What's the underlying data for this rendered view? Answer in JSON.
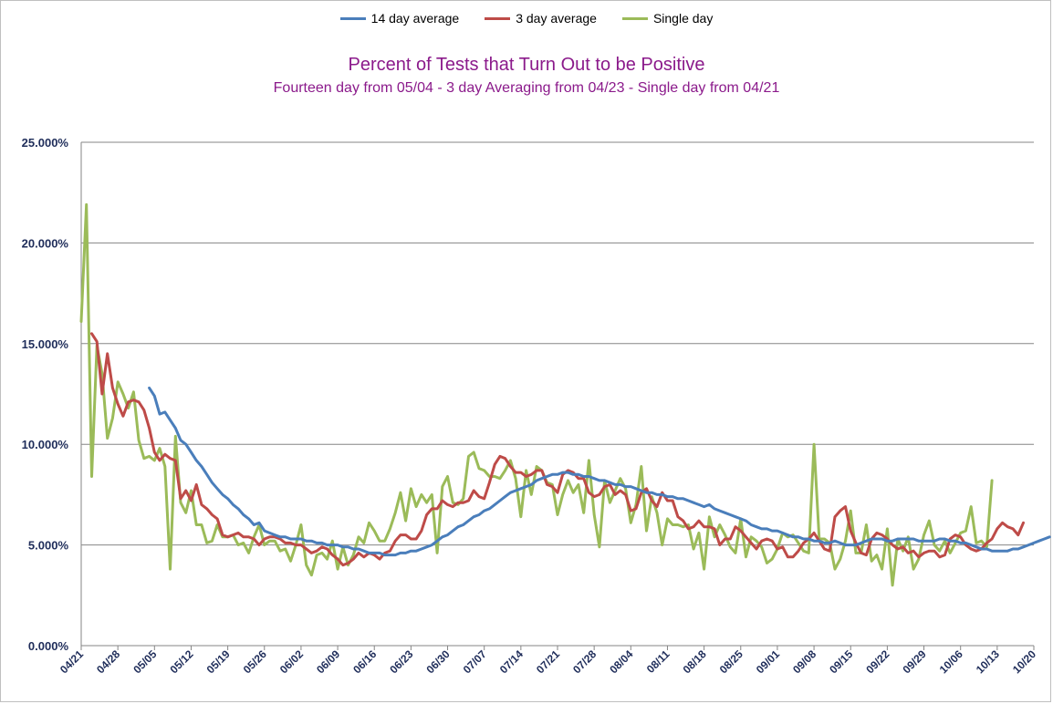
{
  "chart_data": {
    "type": "line",
    "title": "Percent of Tests that Turn Out to be Positive",
    "subtitle": "Fourteen day from 05/04 - 3 day Averaging from 04/23 - Single day from 04/21",
    "ylim": [
      0,
      0.25
    ],
    "yticks": [
      "0.000%",
      "5.000%",
      "10.000%",
      "15.000%",
      "20.000%",
      "25.000%"
    ],
    "ytick_values": [
      0,
      0.05,
      0.1,
      0.15,
      0.2,
      0.25
    ],
    "xlim": [
      0,
      182
    ],
    "xtick_labels": [
      "04/21",
      "04/28",
      "05/05",
      "05/12",
      "05/19",
      "05/26",
      "06/02",
      "06/09",
      "06/16",
      "06/23",
      "06/30",
      "07/07",
      "07/14",
      "07/21",
      "07/28",
      "08/04",
      "08/11",
      "08/18",
      "08/25",
      "09/01",
      "09/08",
      "09/15",
      "09/22",
      "09/29",
      "10/06",
      "10/13",
      "10/20"
    ],
    "xtick_days": [
      0,
      7,
      14,
      21,
      28,
      35,
      42,
      49,
      56,
      63,
      70,
      77,
      84,
      91,
      98,
      105,
      112,
      119,
      126,
      133,
      140,
      147,
      154,
      161,
      168,
      175,
      182
    ],
    "grid": true,
    "legend_position": "top-center",
    "series": [
      {
        "name": "14 day average",
        "color": "#4a7ebb",
        "start_day": 13,
        "values": [
          0.128,
          0.124,
          0.115,
          0.116,
          0.112,
          0.108,
          0.102,
          0.1,
          0.096,
          0.092,
          0.089,
          0.085,
          0.081,
          0.078,
          0.075,
          0.073,
          0.07,
          0.068,
          0.065,
          0.063,
          0.06,
          0.061,
          0.057,
          0.056,
          0.055,
          0.054,
          0.054,
          0.053,
          0.053,
          0.053,
          0.052,
          0.052,
          0.051,
          0.051,
          0.05,
          0.05,
          0.05,
          0.049,
          0.049,
          0.048,
          0.048,
          0.047,
          0.046,
          0.046,
          0.046,
          0.045,
          0.045,
          0.045,
          0.046,
          0.046,
          0.047,
          0.047,
          0.048,
          0.049,
          0.05,
          0.052,
          0.054,
          0.055,
          0.057,
          0.059,
          0.06,
          0.062,
          0.064,
          0.065,
          0.067,
          0.068,
          0.07,
          0.072,
          0.074,
          0.076,
          0.077,
          0.078,
          0.079,
          0.08,
          0.082,
          0.083,
          0.084,
          0.085,
          0.085,
          0.086,
          0.086,
          0.085,
          0.085,
          0.084,
          0.084,
          0.083,
          0.082,
          0.082,
          0.081,
          0.08,
          0.08,
          0.079,
          0.079,
          0.078,
          0.077,
          0.076,
          0.076,
          0.075,
          0.075,
          0.074,
          0.074,
          0.073,
          0.073,
          0.072,
          0.071,
          0.07,
          0.069,
          0.07,
          0.068,
          0.067,
          0.066,
          0.065,
          0.064,
          0.063,
          0.062,
          0.06,
          0.059,
          0.058,
          0.058,
          0.057,
          0.057,
          0.056,
          0.055,
          0.054,
          0.054,
          0.053,
          0.053,
          0.052,
          0.052,
          0.051,
          0.051,
          0.052,
          0.051,
          0.05,
          0.05,
          0.05,
          0.051,
          0.052,
          0.053,
          0.053,
          0.053,
          0.052,
          0.052,
          0.053,
          0.053,
          0.053,
          0.053,
          0.052,
          0.052,
          0.052,
          0.052,
          0.053,
          0.053,
          0.052,
          0.052,
          0.051,
          0.051,
          0.05,
          0.049,
          0.048,
          0.048,
          0.047,
          0.047,
          0.047,
          0.047,
          0.048,
          0.048,
          0.049,
          0.05,
          0.051,
          0.052,
          0.053,
          0.054
        ]
      },
      {
        "name": "3 day average",
        "color": "#be4b48",
        "start_day": 2,
        "values": [
          0.155,
          0.151,
          0.125,
          0.145,
          0.128,
          0.12,
          0.114,
          0.121,
          0.122,
          0.121,
          0.117,
          0.108,
          0.096,
          0.092,
          0.095,
          0.093,
          0.092,
          0.073,
          0.077,
          0.072,
          0.08,
          0.07,
          0.068,
          0.065,
          0.063,
          0.055,
          0.054,
          0.055,
          0.056,
          0.054,
          0.054,
          0.053,
          0.05,
          0.053,
          0.054,
          0.054,
          0.053,
          0.051,
          0.051,
          0.05,
          0.05,
          0.048,
          0.046,
          0.047,
          0.049,
          0.048,
          0.045,
          0.043,
          0.04,
          0.041,
          0.043,
          0.046,
          0.044,
          0.046,
          0.045,
          0.043,
          0.046,
          0.047,
          0.052,
          0.055,
          0.055,
          0.053,
          0.053,
          0.057,
          0.065,
          0.068,
          0.068,
          0.072,
          0.07,
          0.069,
          0.071,
          0.071,
          0.072,
          0.077,
          0.074,
          0.073,
          0.081,
          0.09,
          0.094,
          0.093,
          0.089,
          0.086,
          0.086,
          0.084,
          0.085,
          0.087,
          0.087,
          0.08,
          0.079,
          0.076,
          0.085,
          0.087,
          0.086,
          0.083,
          0.083,
          0.076,
          0.074,
          0.075,
          0.079,
          0.08,
          0.075,
          0.077,
          0.075,
          0.067,
          0.068,
          0.076,
          0.078,
          0.072,
          0.069,
          0.076,
          0.072,
          0.072,
          0.064,
          0.062,
          0.058,
          0.059,
          0.062,
          0.059,
          0.059,
          0.058,
          0.05,
          0.053,
          0.053,
          0.059,
          0.057,
          0.054,
          0.051,
          0.048,
          0.052,
          0.053,
          0.052,
          0.048,
          0.049,
          0.044,
          0.044,
          0.047,
          0.051,
          0.053,
          0.056,
          0.052,
          0.048,
          0.047,
          0.064,
          0.067,
          0.069,
          0.057,
          0.051,
          0.046,
          0.045,
          0.053,
          0.056,
          0.055,
          0.053,
          0.05,
          0.048,
          0.049,
          0.046,
          0.047,
          0.044,
          0.046,
          0.047,
          0.047,
          0.044,
          0.045,
          0.053,
          0.055,
          0.054,
          0.05,
          0.048,
          0.047,
          0.048,
          0.051,
          0.053,
          0.058,
          0.061,
          0.059,
          0.058,
          0.055,
          0.061
        ]
      },
      {
        "name": "Single day",
        "color": "#9bbb59",
        "start_day": 0,
        "values": [
          0.161,
          0.219,
          0.084,
          0.149,
          0.135,
          0.103,
          0.113,
          0.131,
          0.125,
          0.118,
          0.126,
          0.102,
          0.093,
          0.094,
          0.092,
          0.098,
          0.089,
          0.038,
          0.104,
          0.071,
          0.066,
          0.077,
          0.06,
          0.06,
          0.051,
          0.052,
          0.06,
          0.054,
          0.054,
          0.055,
          0.05,
          0.051,
          0.046,
          0.054,
          0.06,
          0.05,
          0.052,
          0.052,
          0.047,
          0.048,
          0.042,
          0.05,
          0.06,
          0.04,
          0.035,
          0.045,
          0.046,
          0.043,
          0.052,
          0.038,
          0.049,
          0.04,
          0.045,
          0.054,
          0.051,
          0.061,
          0.057,
          0.052,
          0.052,
          0.058,
          0.066,
          0.076,
          0.062,
          0.078,
          0.069,
          0.075,
          0.071,
          0.075,
          0.046,
          0.079,
          0.084,
          0.071,
          0.07,
          0.073,
          0.094,
          0.096,
          0.088,
          0.087,
          0.084,
          0.084,
          0.083,
          0.087,
          0.092,
          0.083,
          0.064,
          0.087,
          0.075,
          0.089,
          0.087,
          0.081,
          0.08,
          0.065,
          0.075,
          0.082,
          0.076,
          0.08,
          0.066,
          0.092,
          0.065,
          0.049,
          0.082,
          0.071,
          0.077,
          0.083,
          0.078,
          0.061,
          0.07,
          0.089,
          0.057,
          0.074,
          0.066,
          0.05,
          0.063,
          0.06,
          0.06,
          0.059,
          0.06,
          0.048,
          0.056,
          0.038,
          0.064,
          0.054,
          0.06,
          0.055,
          0.049,
          0.046,
          0.063,
          0.044,
          0.054,
          0.052,
          0.049,
          0.041,
          0.043,
          0.048,
          0.056,
          0.054,
          0.055,
          0.051,
          0.047,
          0.046,
          0.1,
          0.053,
          0.053,
          0.051,
          0.038,
          0.043,
          0.052,
          0.067,
          0.046,
          0.046,
          0.06,
          0.042,
          0.045,
          0.038,
          0.058,
          0.03,
          0.053,
          0.047,
          0.054,
          0.038,
          0.043,
          0.055,
          0.062,
          0.05,
          0.047,
          0.052,
          0.046,
          0.051,
          0.056,
          0.057,
          0.069,
          0.051,
          0.052,
          0.049,
          0.082
        ]
      }
    ]
  }
}
